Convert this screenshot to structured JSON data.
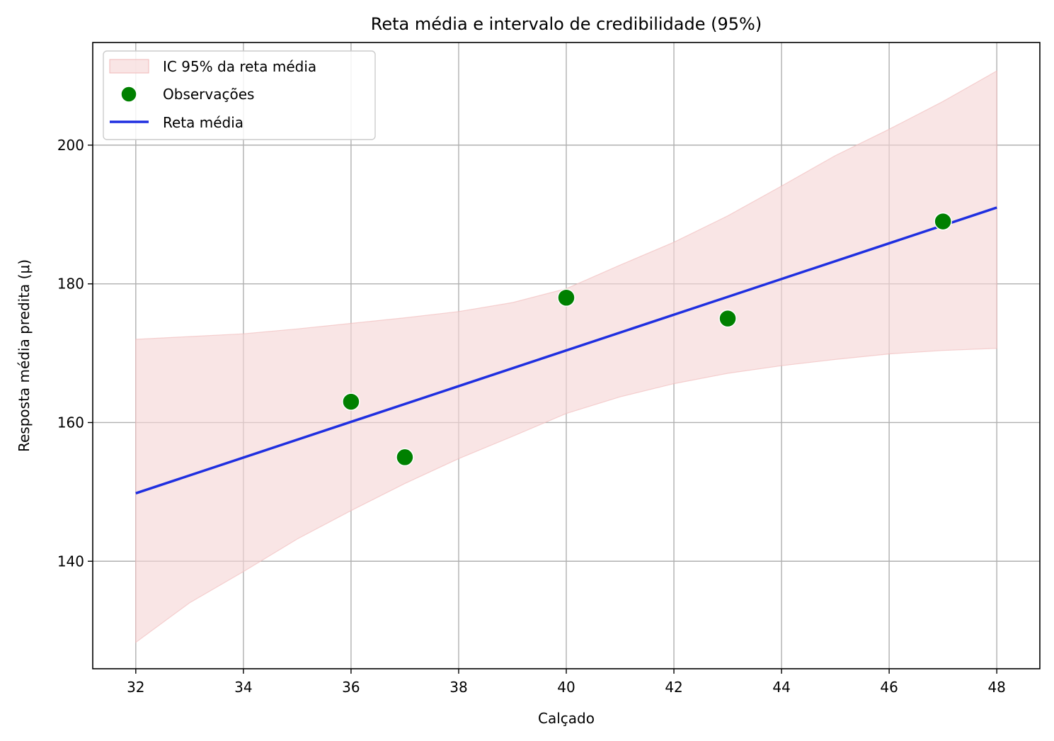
{
  "chart_data": {
    "type": "line",
    "title": "Reta média e intervalo de credibilidade (95%)",
    "xlabel": "Calçado",
    "ylabel": "Resposta média predita (μ)",
    "xlim": [
      31.2,
      48.8
    ],
    "ylim": [
      124.5,
      214.8
    ],
    "x_ticks": [
      32,
      34,
      36,
      38,
      40,
      42,
      44,
      46,
      48
    ],
    "y_ticks": [
      140,
      160,
      180,
      200
    ],
    "grid": true,
    "legend_position": "top-left",
    "legend": [
      "IC 95% da reta média",
      "Observações",
      "Reta média"
    ],
    "mean_line": {
      "name": "Reta média",
      "color": "#1f2fe0",
      "x": [
        32,
        48
      ],
      "y": [
        149.8,
        191.0
      ]
    },
    "credible_interval": {
      "name": "IC 95% da reta média",
      "color": "#f6d5d5",
      "x": [
        32,
        33,
        34,
        35,
        36,
        37,
        38,
        39,
        40,
        41,
        42,
        43,
        44,
        45,
        46,
        47,
        48
      ],
      "upper": [
        172.0,
        172.4,
        172.8,
        173.5,
        174.3,
        175.1,
        176.0,
        177.3,
        179.3,
        182.7,
        186.0,
        189.8,
        194.1,
        198.5,
        202.3,
        206.3,
        210.7
      ],
      "lower": [
        128.3,
        134.0,
        138.5,
        143.2,
        147.3,
        151.2,
        154.8,
        158.0,
        161.3,
        163.7,
        165.6,
        167.1,
        168.2,
        169.1,
        169.9,
        170.4,
        170.7
      ]
    },
    "observations": {
      "name": "Observações",
      "color": "#008000",
      "x": [
        36,
        37,
        40,
        43,
        47
      ],
      "y": [
        163,
        155,
        178,
        175,
        189
      ]
    }
  }
}
